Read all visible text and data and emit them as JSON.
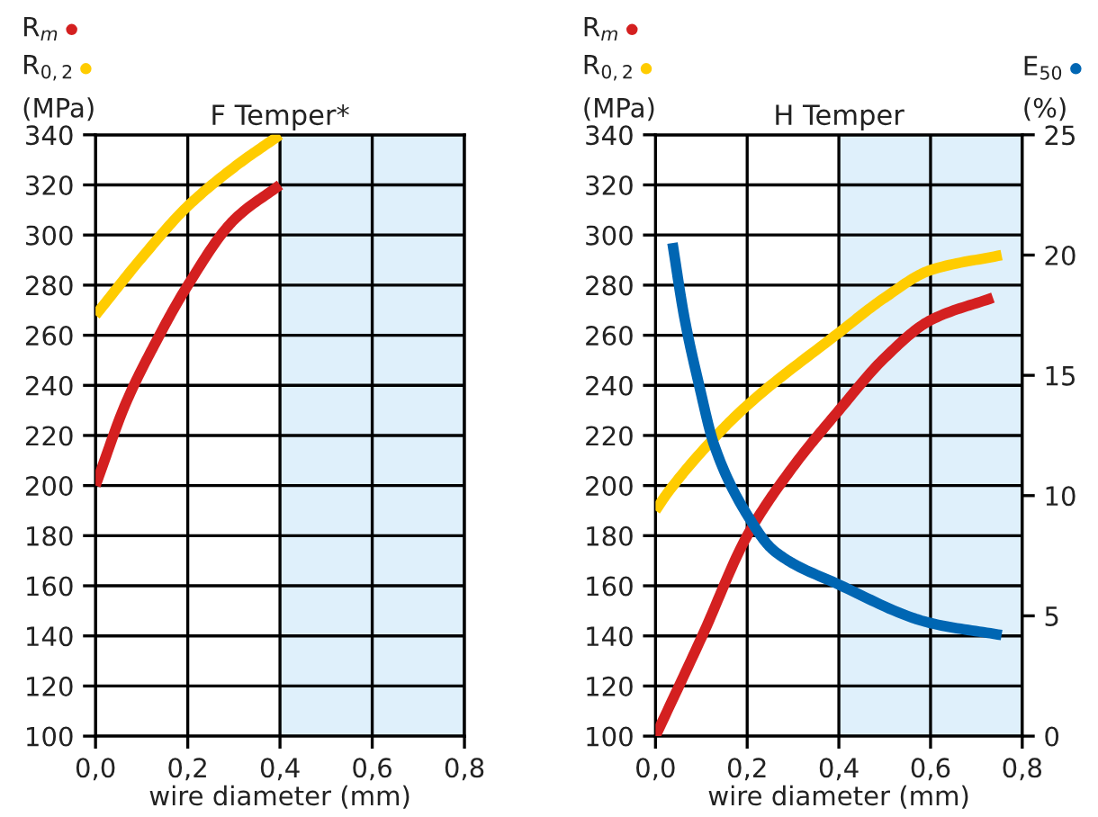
{
  "chart_data": [
    {
      "type": "line",
      "title": "F Temper*",
      "xlabel": "wire diameter (mm)",
      "ylabel": "(MPa)",
      "xlim": [
        0,
        0.8
      ],
      "xticks": [
        {
          "value": 0,
          "label": "0,0"
        },
        {
          "value": 0.2,
          "label": "0,2"
        },
        {
          "value": 0.4,
          "label": "0,4"
        },
        {
          "value": 0.6,
          "label": "0,6"
        },
        {
          "value": 0.8,
          "label": "0,8"
        }
      ],
      "ylim": [
        100,
        340
      ],
      "yticks": [
        100,
        120,
        140,
        160,
        180,
        200,
        220,
        240,
        260,
        280,
        300,
        320,
        340
      ],
      "grid": true,
      "legend": "top left",
      "bands": [
        {
          "axis": "x",
          "from": 0.4,
          "to": 0.8,
          "color": "#dff0fb"
        }
      ],
      "series": [
        {
          "name": "R$_{m}$",
          "color": "#d42020",
          "x": [
            0,
            0.066,
            0.13,
            0.197,
            0.3,
            0.4
          ],
          "values": [
            200,
            233,
            257,
            279,
            306,
            320
          ]
        },
        {
          "name": "R$_{0,2}$",
          "color": "#ffcc00",
          "x": [
            0,
            0.105,
            0.197,
            0.3,
            0.4
          ],
          "values": [
            268,
            292,
            311,
            327,
            340
          ]
        }
      ]
    },
    {
      "type": "line",
      "title": "H Temper",
      "xlabel": "wire diameter (mm)",
      "ylabel": "(MPa)",
      "y2label": "(%)",
      "xlim": [
        0,
        0.8
      ],
      "xticks": [
        {
          "value": 0,
          "label": "0,0"
        },
        {
          "value": 0.2,
          "label": "0,2"
        },
        {
          "value": 0.4,
          "label": "0,4"
        },
        {
          "value": 0.6,
          "label": "0,6"
        },
        {
          "value": 0.8,
          "label": "0,8"
        }
      ],
      "ylim": [
        100,
        340
      ],
      "yticks": [
        100,
        120,
        140,
        160,
        180,
        200,
        220,
        240,
        260,
        280,
        300,
        320,
        340
      ],
      "y2lim": [
        0,
        25
      ],
      "y2ticks": [
        0,
        5,
        10,
        15,
        20,
        25
      ],
      "grid": true,
      "legend": "top left",
      "bands": [
        {
          "axis": "x",
          "from": 0.4,
          "to": 0.8,
          "color": "#dff0fb"
        }
      ],
      "series": [
        {
          "name": "R$_{m}$",
          "color": "#d42020",
          "x": [
            0,
            0.102,
            0.2,
            0.298,
            0.4,
            0.5,
            0.6,
            0.736
          ],
          "values": [
            100,
            140,
            180,
            207,
            230,
            251,
            266,
            275
          ]
        },
        {
          "name": "R$_{0,2}$",
          "color": "#ffcc00",
          "x": [
            0,
            0.026,
            0.128,
            0.2,
            0.4,
            0.5,
            0.6,
            0.755
          ],
          "values": [
            190,
            197,
            219,
            232,
            261,
            275,
            286,
            292
          ]
        },
        {
          "name": "E$_{50}$",
          "color": "#0066b3",
          "axis": "y2",
          "x": [
            0.037,
            0.063,
            0.095,
            0.128,
            0.2,
            0.259,
            0.4,
            0.6,
            0.755
          ],
          "values": [
            20.5,
            17.4,
            14.6,
            12.1,
            9.2,
            7.7,
            6.3,
            4.7,
            4.2
          ]
        }
      ]
    }
  ]
}
